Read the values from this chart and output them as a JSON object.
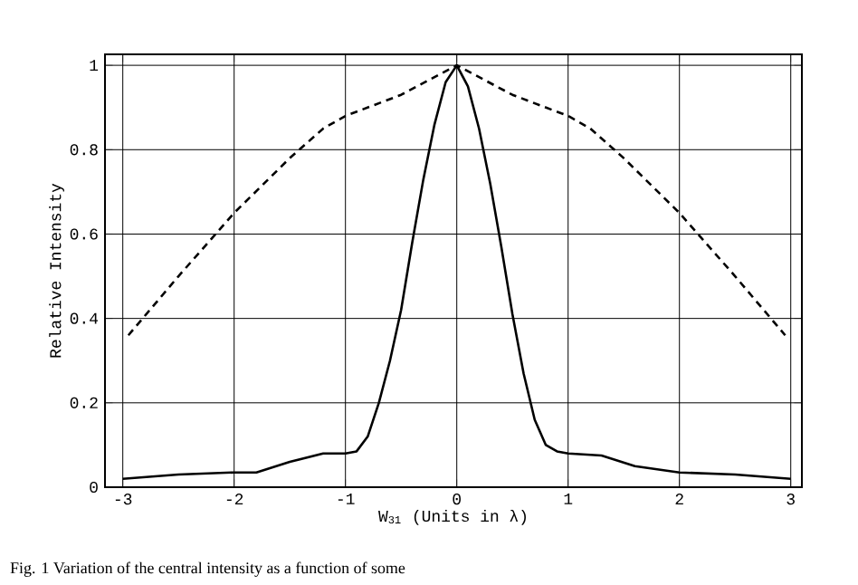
{
  "chart_data": {
    "type": "line",
    "xlabel": "W$_{31}$ (Units in λ)",
    "ylabel": "Relative Intensity",
    "annotations": [
      "Fig. 1    Variation of the central intensity as a function of some"
    ],
    "xlim": [
      -3.16,
      3.1
    ],
    "ylim": [
      0,
      1.026
    ],
    "xticks": [
      -3,
      -2,
      -1,
      0,
      1,
      2,
      3
    ],
    "yticks": [
      0,
      0.2,
      0.4,
      0.6,
      0.8,
      1
    ],
    "grid": true,
    "marker": "none",
    "series": [
      {
        "color": "#000000",
        "line_style": "solid",
        "x": [
          -3,
          -2.5,
          -2,
          -1.8,
          -1.5,
          -1.2,
          -1,
          -0.9,
          -0.8,
          -0.7,
          -0.6,
          -0.5,
          -0.4,
          -0.3,
          -0.2,
          -0.1,
          0,
          0.1,
          0.2,
          0.3,
          0.4,
          0.5,
          0.6,
          0.7,
          0.8,
          0.9,
          1,
          1.3,
          1.6,
          2,
          2.5,
          3
        ],
        "values": [
          0.02,
          0.03,
          0.035,
          0.035,
          0.06,
          0.08,
          0.08,
          0.085,
          0.12,
          0.2,
          0.3,
          0.42,
          0.58,
          0.73,
          0.86,
          0.96,
          1,
          0.95,
          0.85,
          0.72,
          0.57,
          0.41,
          0.27,
          0.16,
          0.1,
          0.085,
          0.08,
          0.075,
          0.05,
          0.035,
          0.03,
          0.02
        ]
      },
      {
        "color": "#000000",
        "line_style": "dashed",
        "x": [
          -2.95,
          -2.5,
          -2,
          -1.5,
          -1.2,
          -1,
          -0.5,
          0,
          0.5,
          1,
          1.2,
          1.5,
          2,
          2.5,
          2.95
        ],
        "values": [
          0.36,
          0.5,
          0.65,
          0.78,
          0.85,
          0.88,
          0.93,
          1,
          0.93,
          0.88,
          0.85,
          0.78,
          0.65,
          0.5,
          0.36
        ]
      }
    ]
  }
}
